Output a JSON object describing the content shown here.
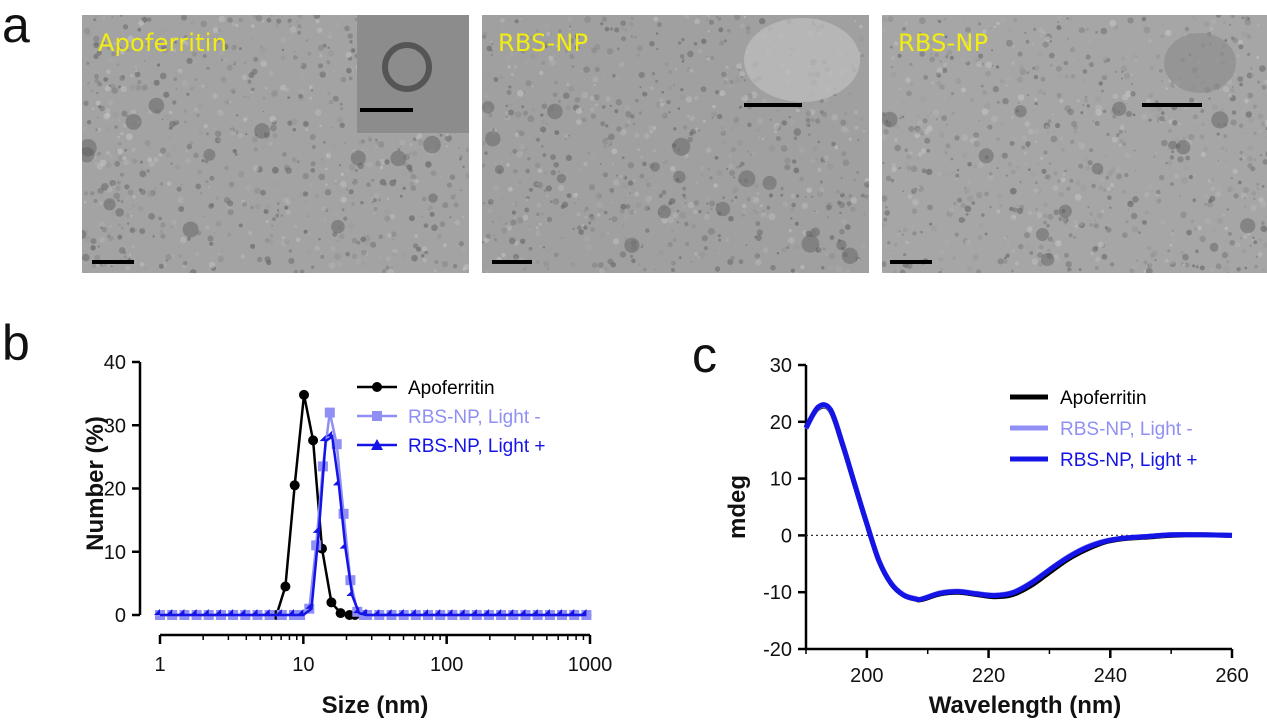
{
  "panels": {
    "a": "a",
    "b": "b",
    "c": "c"
  },
  "tem_images": [
    {
      "label": "Apoferritin",
      "has_inset": true
    },
    {
      "label": "RBS-NP",
      "has_inset": true
    },
    {
      "label": "RBS-NP",
      "has_inset": true
    }
  ],
  "colors": {
    "apoferritin": "#000000",
    "light_minus": "#8f8ff5",
    "light_plus": "#1414e6",
    "label_yellow": "#f2ec12"
  },
  "chart_data": [
    {
      "id": "b",
      "type": "line",
      "xscale": "log",
      "xlabel": "Size (nm)",
      "ylabel": "Number (%)",
      "xlim": [
        1,
        1000
      ],
      "ylim": [
        0,
        40
      ],
      "xticks": [
        1,
        10,
        100,
        1000
      ],
      "yticks": [
        0,
        10,
        20,
        30,
        40
      ],
      "legend_position": "top-right",
      "series": [
        {
          "name": "Apoferritin",
          "marker": "circle",
          "color": "#000000",
          "x": [
            6.5,
            7.5,
            8.7,
            10.1,
            11.7,
            13.5,
            15.7,
            18.2,
            21.0
          ],
          "y": [
            0,
            4.5,
            20.5,
            34.8,
            27.6,
            10.5,
            2.0,
            0.3,
            0
          ]
        },
        {
          "name": "RBS-NP, Light -",
          "marker": "square",
          "color": "#8f8ff5",
          "x": [
            9.5,
            11.0,
            12.3,
            13.7,
            15.3,
            17.1,
            19.1,
            21.3,
            23.8,
            26.5
          ],
          "y": [
            0,
            1.0,
            11.0,
            23.5,
            32.0,
            27.0,
            16.0,
            5.5,
            0.5,
            0
          ]
        },
        {
          "name": "RBS-NP, Light +",
          "marker": "triangle",
          "color": "#1414e6",
          "x": [
            10.0,
            11.4,
            12.8,
            14.3,
            15.9,
            17.7,
            19.7,
            22.0,
            24.5,
            27.3
          ],
          "y": [
            0,
            1.0,
            13.0,
            27.5,
            28.2,
            20.5,
            10.5,
            3.0,
            0.3,
            0
          ]
        }
      ]
    },
    {
      "id": "c",
      "type": "line",
      "xlabel": "Wavelength (nm)",
      "ylabel": "mdeg",
      "xlim": [
        190,
        260
      ],
      "ylim": [
        -20,
        30
      ],
      "xticks": [
        200,
        220,
        240,
        260
      ],
      "yticks": [
        -20,
        -10,
        0,
        10,
        20,
        30
      ],
      "zero_line": "dotted",
      "legend_position": "top-right",
      "series": [
        {
          "name": "Apoferritin",
          "color": "#000000",
          "x": [
            190,
            192,
            194,
            196,
            198,
            200,
            202,
            204,
            206,
            208,
            209,
            212,
            215,
            218,
            221,
            224,
            227,
            230,
            233,
            236,
            239,
            242,
            246,
            250,
            255,
            260
          ],
          "y": [
            19,
            22.4,
            22,
            16,
            9,
            2,
            -4.5,
            -8.5,
            -10.5,
            -11.2,
            -11.3,
            -10.3,
            -10.0,
            -10.4,
            -10.8,
            -10.4,
            -8.8,
            -6.5,
            -4.2,
            -2.5,
            -1.2,
            -0.6,
            -0.3,
            0,
            0.1,
            0
          ]
        },
        {
          "name": "RBS-NP, Light -",
          "color": "#8f8ff5",
          "x": [
            190,
            192,
            194,
            196,
            198,
            200,
            202,
            204,
            206,
            208,
            209,
            212,
            215,
            218,
            221,
            224,
            227,
            230,
            233,
            236,
            239,
            242,
            246,
            250,
            255,
            260
          ],
          "y": [
            18.8,
            22.5,
            22.1,
            16.2,
            9.1,
            2.1,
            -4.4,
            -8.4,
            -10.4,
            -11.1,
            -11.2,
            -10.1,
            -9.8,
            -10.2,
            -10.5,
            -10.0,
            -8.3,
            -6.0,
            -3.8,
            -2.1,
            -1.0,
            -0.5,
            -0.2,
            0.1,
            0.1,
            0
          ]
        },
        {
          "name": "RBS-NP, Light +",
          "color": "#1414e6",
          "x": [
            190,
            192,
            194,
            196,
            198,
            200,
            202,
            204,
            206,
            208,
            209,
            212,
            215,
            218,
            221,
            224,
            227,
            230,
            233,
            236,
            239,
            242,
            246,
            250,
            255,
            260
          ],
          "y": [
            18.9,
            22.6,
            22.2,
            16.1,
            9.0,
            2.0,
            -4.5,
            -8.5,
            -10.5,
            -11.2,
            -11.2,
            -10.2,
            -9.9,
            -10.3,
            -10.6,
            -10.1,
            -8.4,
            -6.1,
            -3.9,
            -2.2,
            -1.1,
            -0.5,
            -0.2,
            0.1,
            0.1,
            0
          ]
        }
      ]
    }
  ]
}
